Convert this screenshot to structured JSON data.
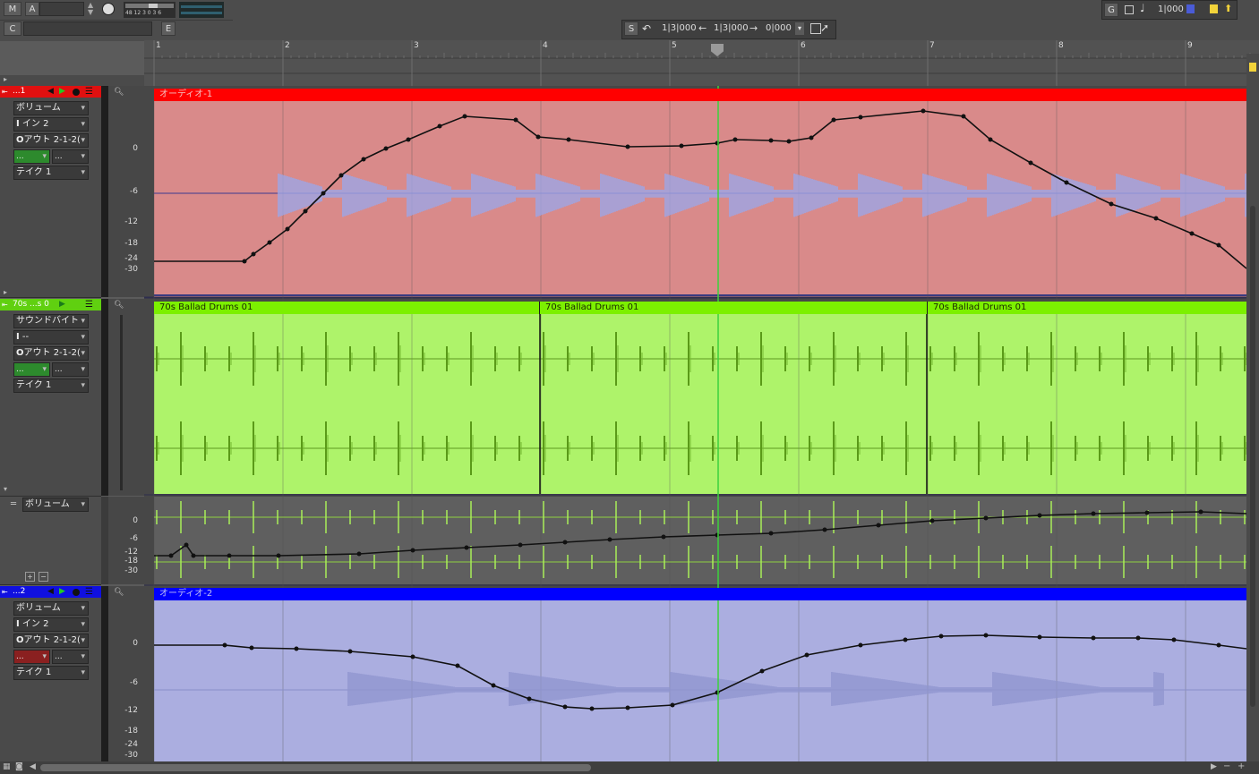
{
  "toolbar": {
    "m_label": "M",
    "a_label": "A",
    "c_label": "C",
    "e_label": "E",
    "meter_scale": "48 12 3 0 3 6",
    "s_label": "S",
    "position1": "1|3|000",
    "position2": "1|3|000",
    "position3": "0|000",
    "g_label": "G",
    "snap_value": "1|000"
  },
  "ruler": {
    "bars": [
      "1",
      "2",
      "3",
      "4",
      "5",
      "6",
      "7",
      "8",
      "9"
    ]
  },
  "tracks": [
    {
      "name": "...1",
      "color": "#ff0000",
      "volume_label": "ボリューム",
      "input_label": "イン 2",
      "output_label": "アウト 2-1-2(",
      "take_label": "テイク 1",
      "clip_name": "オーディオ-1",
      "clip_color": "#d98a8a",
      "axis": [
        "0",
        "-6",
        "-12",
        "-18",
        "-24",
        "-30"
      ]
    },
    {
      "name": "70s ...s 0",
      "color": "#7fff00",
      "soundbite_label": "サウンドバイト",
      "input_label": "--",
      "output_label": "アウト 2-1-2(",
      "take_label": "テイク 1",
      "clips": [
        "70s Ballad Drums 01",
        "70s Ballad Drums 01",
        "70s Ballad Drums 01"
      ],
      "lane_label": "ボリューム",
      "lane_axis": [
        "0",
        "-6",
        "-12",
        "-18",
        "-30"
      ]
    },
    {
      "name": "...2",
      "color": "#0000ff",
      "volume_label": "ボリューム",
      "input_label": "イン 2",
      "output_label": "アウト 2-1-2(",
      "take_label": "テイク 1",
      "clip_name": "オーディオ-2",
      "clip_color": "#abaee0",
      "axis": [
        "0",
        "-6",
        "-12",
        "-18",
        "-24",
        "-30"
      ]
    }
  ],
  "colors": {
    "red_clip": "#d98a8a",
    "green_clip": "#aef36a",
    "blue_clip": "#abaee0",
    "playhead": "#3cd23c"
  }
}
